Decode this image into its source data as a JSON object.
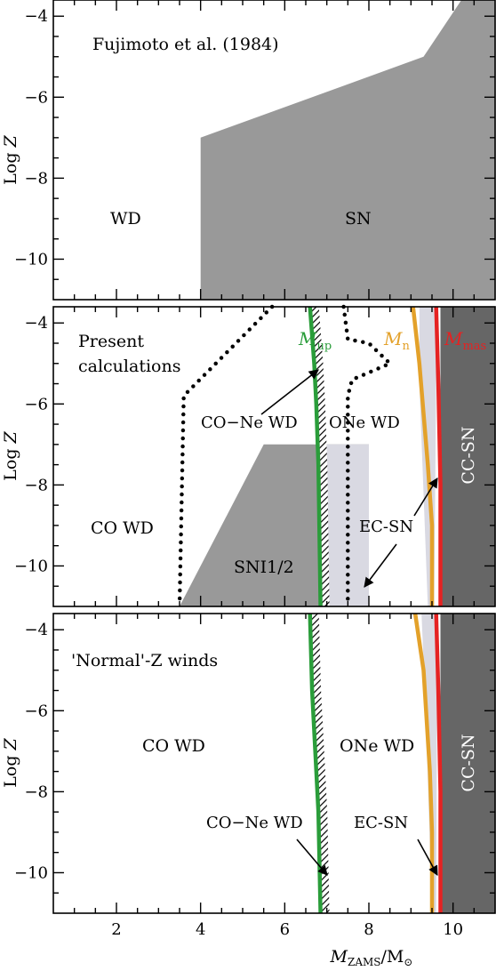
{
  "chart_data": [
    {
      "type": "area",
      "panel": "top",
      "title": "Fujimoto et al. (1984)",
      "ylabel": "Log Z",
      "xlim": [
        0.5,
        11
      ],
      "ylim": [
        -11,
        -3.6
      ],
      "xticks": [
        2,
        4,
        6,
        8,
        10
      ],
      "yticks": [
        -4,
        -6,
        -8,
        -10
      ],
      "regions": [
        {
          "name": "SN",
          "color": "#999999",
          "polygon": [
            [
              4,
              -11
            ],
            [
              4,
              -7
            ],
            [
              9.3,
              -5.0
            ],
            [
              10.2,
              -3.6
            ],
            [
              11,
              -3.6
            ],
            [
              11,
              -11
            ]
          ]
        }
      ],
      "annotations": [
        {
          "text": "Fujimoto et al. (1984)",
          "x": 1.4,
          "y": -4.1
        },
        {
          "text": "WD",
          "x": 1.8,
          "y": -9.1
        },
        {
          "text": "SN",
          "x": 7.0,
          "y": -9.1
        }
      ]
    },
    {
      "type": "line",
      "panel": "middle",
      "ylabel": "Log Z",
      "xlim": [
        0.5,
        11
      ],
      "ylim": [
        -11,
        -3.6
      ],
      "yticks": [
        -4,
        -6,
        -8,
        -10
      ],
      "regions": [
        {
          "name": "SNI1/2",
          "color": "#999999",
          "polygon": [
            [
              3.5,
              -11
            ],
            [
              5.5,
              -7
            ],
            [
              8.0,
              -7
            ],
            [
              8.0,
              -11
            ]
          ]
        },
        {
          "name": "EC-SN",
          "color": "#d9d9e2",
          "polygon": [
            [
              6.9,
              -11
            ],
            [
              6.9,
              -7
            ],
            [
              8.0,
              -7
            ],
            [
              8.0,
              -11
            ]
          ]
        },
        {
          "name": "EC-SN band",
          "color": "#d9d9e2",
          "polygon": [
            [
              9.2,
              -3.6
            ],
            [
              9.65,
              -3.6
            ],
            [
              9.6,
              -5.5
            ],
            [
              9.55,
              -11
            ],
            [
              9.4,
              -11
            ],
            [
              9.2,
              -5.5
            ]
          ]
        },
        {
          "name": "CC-SN",
          "color": "#666666",
          "polygon": [
            [
              9.7,
              -3.6
            ],
            [
              11,
              -3.6
            ],
            [
              11,
              -11
            ],
            [
              9.7,
              -11
            ]
          ]
        }
      ],
      "series": [
        {
          "name": "M_up",
          "color": "#2a9d3a",
          "x": [
            6.6,
            6.7,
            6.75,
            6.8,
            6.85
          ],
          "y": [
            -3.6,
            -5.0,
            -6.0,
            -7.5,
            -11
          ]
        },
        {
          "name": "M_n",
          "color": "#e3a12a",
          "x": [
            9.05,
            9.2,
            9.4,
            9.5,
            9.5
          ],
          "y": [
            -3.6,
            -5.0,
            -7.5,
            -9.0,
            -11
          ]
        },
        {
          "name": "M_mas",
          "color": "#e52222",
          "x": [
            9.6,
            9.65,
            9.7,
            9.7
          ],
          "y": [
            -3.6,
            -5.5,
            -8.0,
            -11
          ]
        },
        {
          "name": "dotted-left",
          "color": "#000000",
          "style": "dotted",
          "x": [
            5.7,
            3.6,
            3.5
          ],
          "y": [
            -3.6,
            -5.8,
            -11
          ]
        },
        {
          "name": "dotted-right",
          "color": "#000000",
          "style": "dotted",
          "x": [
            7.4,
            7.5,
            8.0,
            8.5,
            7.6,
            7.5,
            7.5
          ],
          "y": [
            -3.6,
            -4.4,
            -4.5,
            -5.0,
            -5.4,
            -5.8,
            -11
          ]
        }
      ],
      "annotations": [
        {
          "text": "Present",
          "x": 0.9,
          "y": -4.2
        },
        {
          "text": "calculations",
          "x": 0.9,
          "y": -4.9
        },
        {
          "text": "CO-Ne WD",
          "x": 4.2,
          "y": -6.7
        },
        {
          "text": "ONe WD",
          "x": 7.3,
          "y": -6.7
        },
        {
          "text": "CO WD",
          "x": 1.1,
          "y": -9.1
        },
        {
          "text": "SNI1/2",
          "x": 5.3,
          "y": -10.2
        },
        {
          "text": "EC-SN",
          "x": 7.7,
          "y": -9.1
        },
        {
          "text": "CC-SN",
          "x": 10.5,
          "y": -7.6,
          "rotate": true
        }
      ]
    },
    {
      "type": "line",
      "panel": "bottom",
      "ylabel": "Log Z",
      "xlabel": "M_ZAMS/M_sun",
      "xlim": [
        0.5,
        11
      ],
      "ylim": [
        -11,
        -3.6
      ],
      "xticks": [
        2,
        4,
        6,
        8,
        10
      ],
      "yticks": [
        -4,
        -6,
        -8,
        -10
      ],
      "regions": [
        {
          "name": "EC-SN band",
          "color": "#d9d9e2",
          "polygon": [
            [
              9.25,
              -3.6
            ],
            [
              9.65,
              -3.6
            ],
            [
              9.62,
              -5.5
            ],
            [
              9.6,
              -11
            ],
            [
              9.5,
              -11
            ],
            [
              9.35,
              -6
            ]
          ]
        },
        {
          "name": "CC-SN",
          "color": "#666666",
          "polygon": [
            [
              9.7,
              -3.6
            ],
            [
              11,
              -3.6
            ],
            [
              11,
              -11
            ],
            [
              9.7,
              -11
            ]
          ]
        }
      ],
      "series": [
        {
          "name": "M_up",
          "color": "#2a9d3a",
          "x": [
            6.6,
            6.65,
            6.7,
            6.8,
            6.85
          ],
          "y": [
            -3.6,
            -5.5,
            -6.5,
            -8.5,
            -11
          ]
        },
        {
          "name": "M_n",
          "color": "#e3a12a",
          "x": [
            9.1,
            9.3,
            9.45,
            9.5,
            9.5
          ],
          "y": [
            -3.6,
            -5.0,
            -7.5,
            -9.0,
            -11
          ]
        },
        {
          "name": "M_mas",
          "color": "#e52222",
          "x": [
            9.6,
            9.65,
            9.7,
            9.7
          ],
          "y": [
            -3.6,
            -5.5,
            -8.0,
            -11
          ]
        }
      ],
      "annotations": [
        {
          "text": "'Normal'-Z winds",
          "x": 1.1,
          "y": -4.8
        },
        {
          "text": "CO WD",
          "x": 3.1,
          "y": -6.8
        },
        {
          "text": "ONe WD",
          "x": 7.8,
          "y": -6.8
        },
        {
          "text": "CO-Ne WD",
          "x": 5.4,
          "y": -9.0
        },
        {
          "text": "EC-SN",
          "x": 8.1,
          "y": -9.0
        },
        {
          "text": "CC-SN",
          "x": 10.5,
          "y": -7.6,
          "rotate": true
        }
      ]
    }
  ],
  "labels": {
    "fujimoto": "Fujimoto et al. (1984)",
    "wd": "WD",
    "sn": "SN",
    "present": "Present",
    "calculations": "calculations",
    "m_up": "M",
    "m_up_sub": "up",
    "m_n": "M",
    "m_n_sub": "n",
    "m_mas": "M",
    "m_mas_sub": "mas",
    "co_ne_wd": "CO−Ne WD",
    "one_wd": "ONe WD",
    "co_wd": "CO WD",
    "sni12": "SNI1/2",
    "ec_sn": "EC-SN",
    "cc_sn": "CC-SN",
    "normal_z": "'Normal'-Z winds",
    "ylabel_log": "Log ",
    "ylabel_z": "Z",
    "xlabel_m": "M",
    "xlabel_sub": "ZAMS",
    "xlabel_rest": "/M",
    "xlabel_sun": "⊙"
  },
  "colors": {
    "sn_gray": "#999999",
    "light_lavender": "#d9d9e2",
    "dark_gray": "#666666",
    "green": "#2a9d3a",
    "orange": "#e3a12a",
    "red": "#e52222"
  }
}
